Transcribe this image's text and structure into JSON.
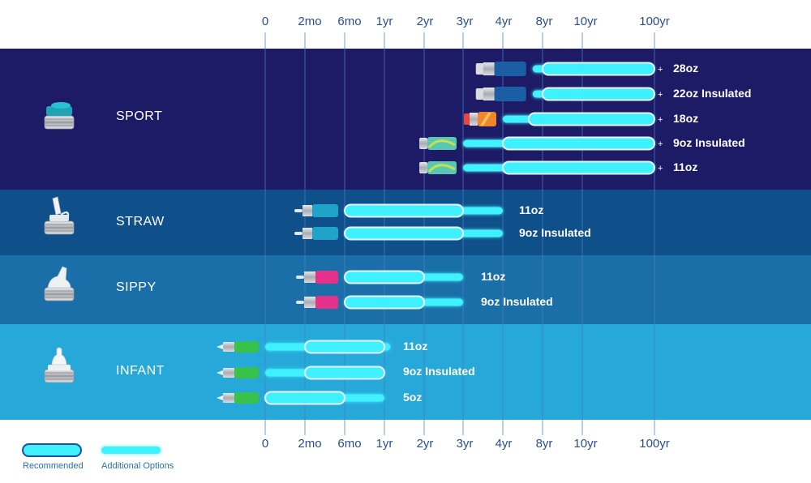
{
  "chart_data": {
    "type": "range-bar",
    "ticks": [
      "0",
      "2mo",
      "6mo",
      "1yr",
      "2yr",
      "3yr",
      "4yr",
      "8yr",
      "10yr",
      "100yr"
    ],
    "categories": [
      {
        "name": "SPORT",
        "color": "#1d1b66",
        "icon": "sport-cap-icon",
        "rows": [
          {
            "label": "28oz",
            "bottle": "navy-bottle-icon",
            "recommended": [
              7,
              9
            ],
            "additional": [
              6.75,
              9
            ],
            "plus": true
          },
          {
            "label": "22oz Insulated",
            "bottle": "navy-insulated-bottle-icon",
            "recommended": [
              7,
              9
            ],
            "additional": [
              6.75,
              9
            ],
            "plus": true
          },
          {
            "label": "18oz",
            "bottle": "orange-bottle-icon",
            "recommended": [
              6.65,
              9
            ],
            "additional": [
              6,
              9
            ],
            "plus": true
          },
          {
            "label": "9oz Insulated",
            "bottle": "green-bottle-icon",
            "recommended": [
              6,
              9
            ],
            "additional": [
              5,
              9
            ],
            "plus": true
          },
          {
            "label": "11oz",
            "bottle": "green-bottle-icon",
            "recommended": [
              6,
              9
            ],
            "additional": [
              5,
              9
            ],
            "plus": true
          }
        ]
      },
      {
        "name": "STRAW",
        "color": "#0f4f8a",
        "icon": "straw-cap-icon",
        "rows": [
          {
            "label": "11oz",
            "bottle": "blue-straw-bottle-icon",
            "recommended": [
              2,
              5
            ],
            "additional": [
              2,
              6
            ],
            "plus": false
          },
          {
            "label": "9oz Insulated",
            "bottle": "blue-straw-bottle-icon",
            "recommended": [
              2,
              5
            ],
            "additional": [
              2,
              6
            ],
            "plus": false
          }
        ]
      },
      {
        "name": "SIPPY",
        "color": "#1a6fa8",
        "icon": "sippy-cap-icon",
        "rows": [
          {
            "label": "11oz",
            "bottle": "pink-sippy-bottle-icon",
            "recommended": [
              2,
              4
            ],
            "additional": [
              2,
              5
            ],
            "plus": false
          },
          {
            "label": "9oz Insulated",
            "bottle": "pink-sippy-bottle-icon",
            "recommended": [
              2,
              4
            ],
            "additional": [
              2,
              5
            ],
            "plus": false
          }
        ]
      },
      {
        "name": "INFANT",
        "color": "#26a9d9",
        "icon": "infant-nipple-icon",
        "rows": [
          {
            "label": "11oz",
            "bottle": "green-infant-bottle-icon",
            "recommended": [
              1,
              3
            ],
            "additional": [
              0,
              3.15
            ],
            "plus": false
          },
          {
            "label": "9oz Insulated",
            "bottle": "green-infant-bottle-icon",
            "recommended": [
              1,
              3
            ],
            "additional": [
              0,
              3
            ],
            "plus": false
          },
          {
            "label": "5oz",
            "bottle": "green-infant-bottle-icon",
            "recommended": [
              0,
              2
            ],
            "additional": [
              0,
              3
            ],
            "plus": false
          }
        ]
      }
    ],
    "legend": {
      "recommended": "Recommended",
      "additional": "Additional Options"
    }
  }
}
